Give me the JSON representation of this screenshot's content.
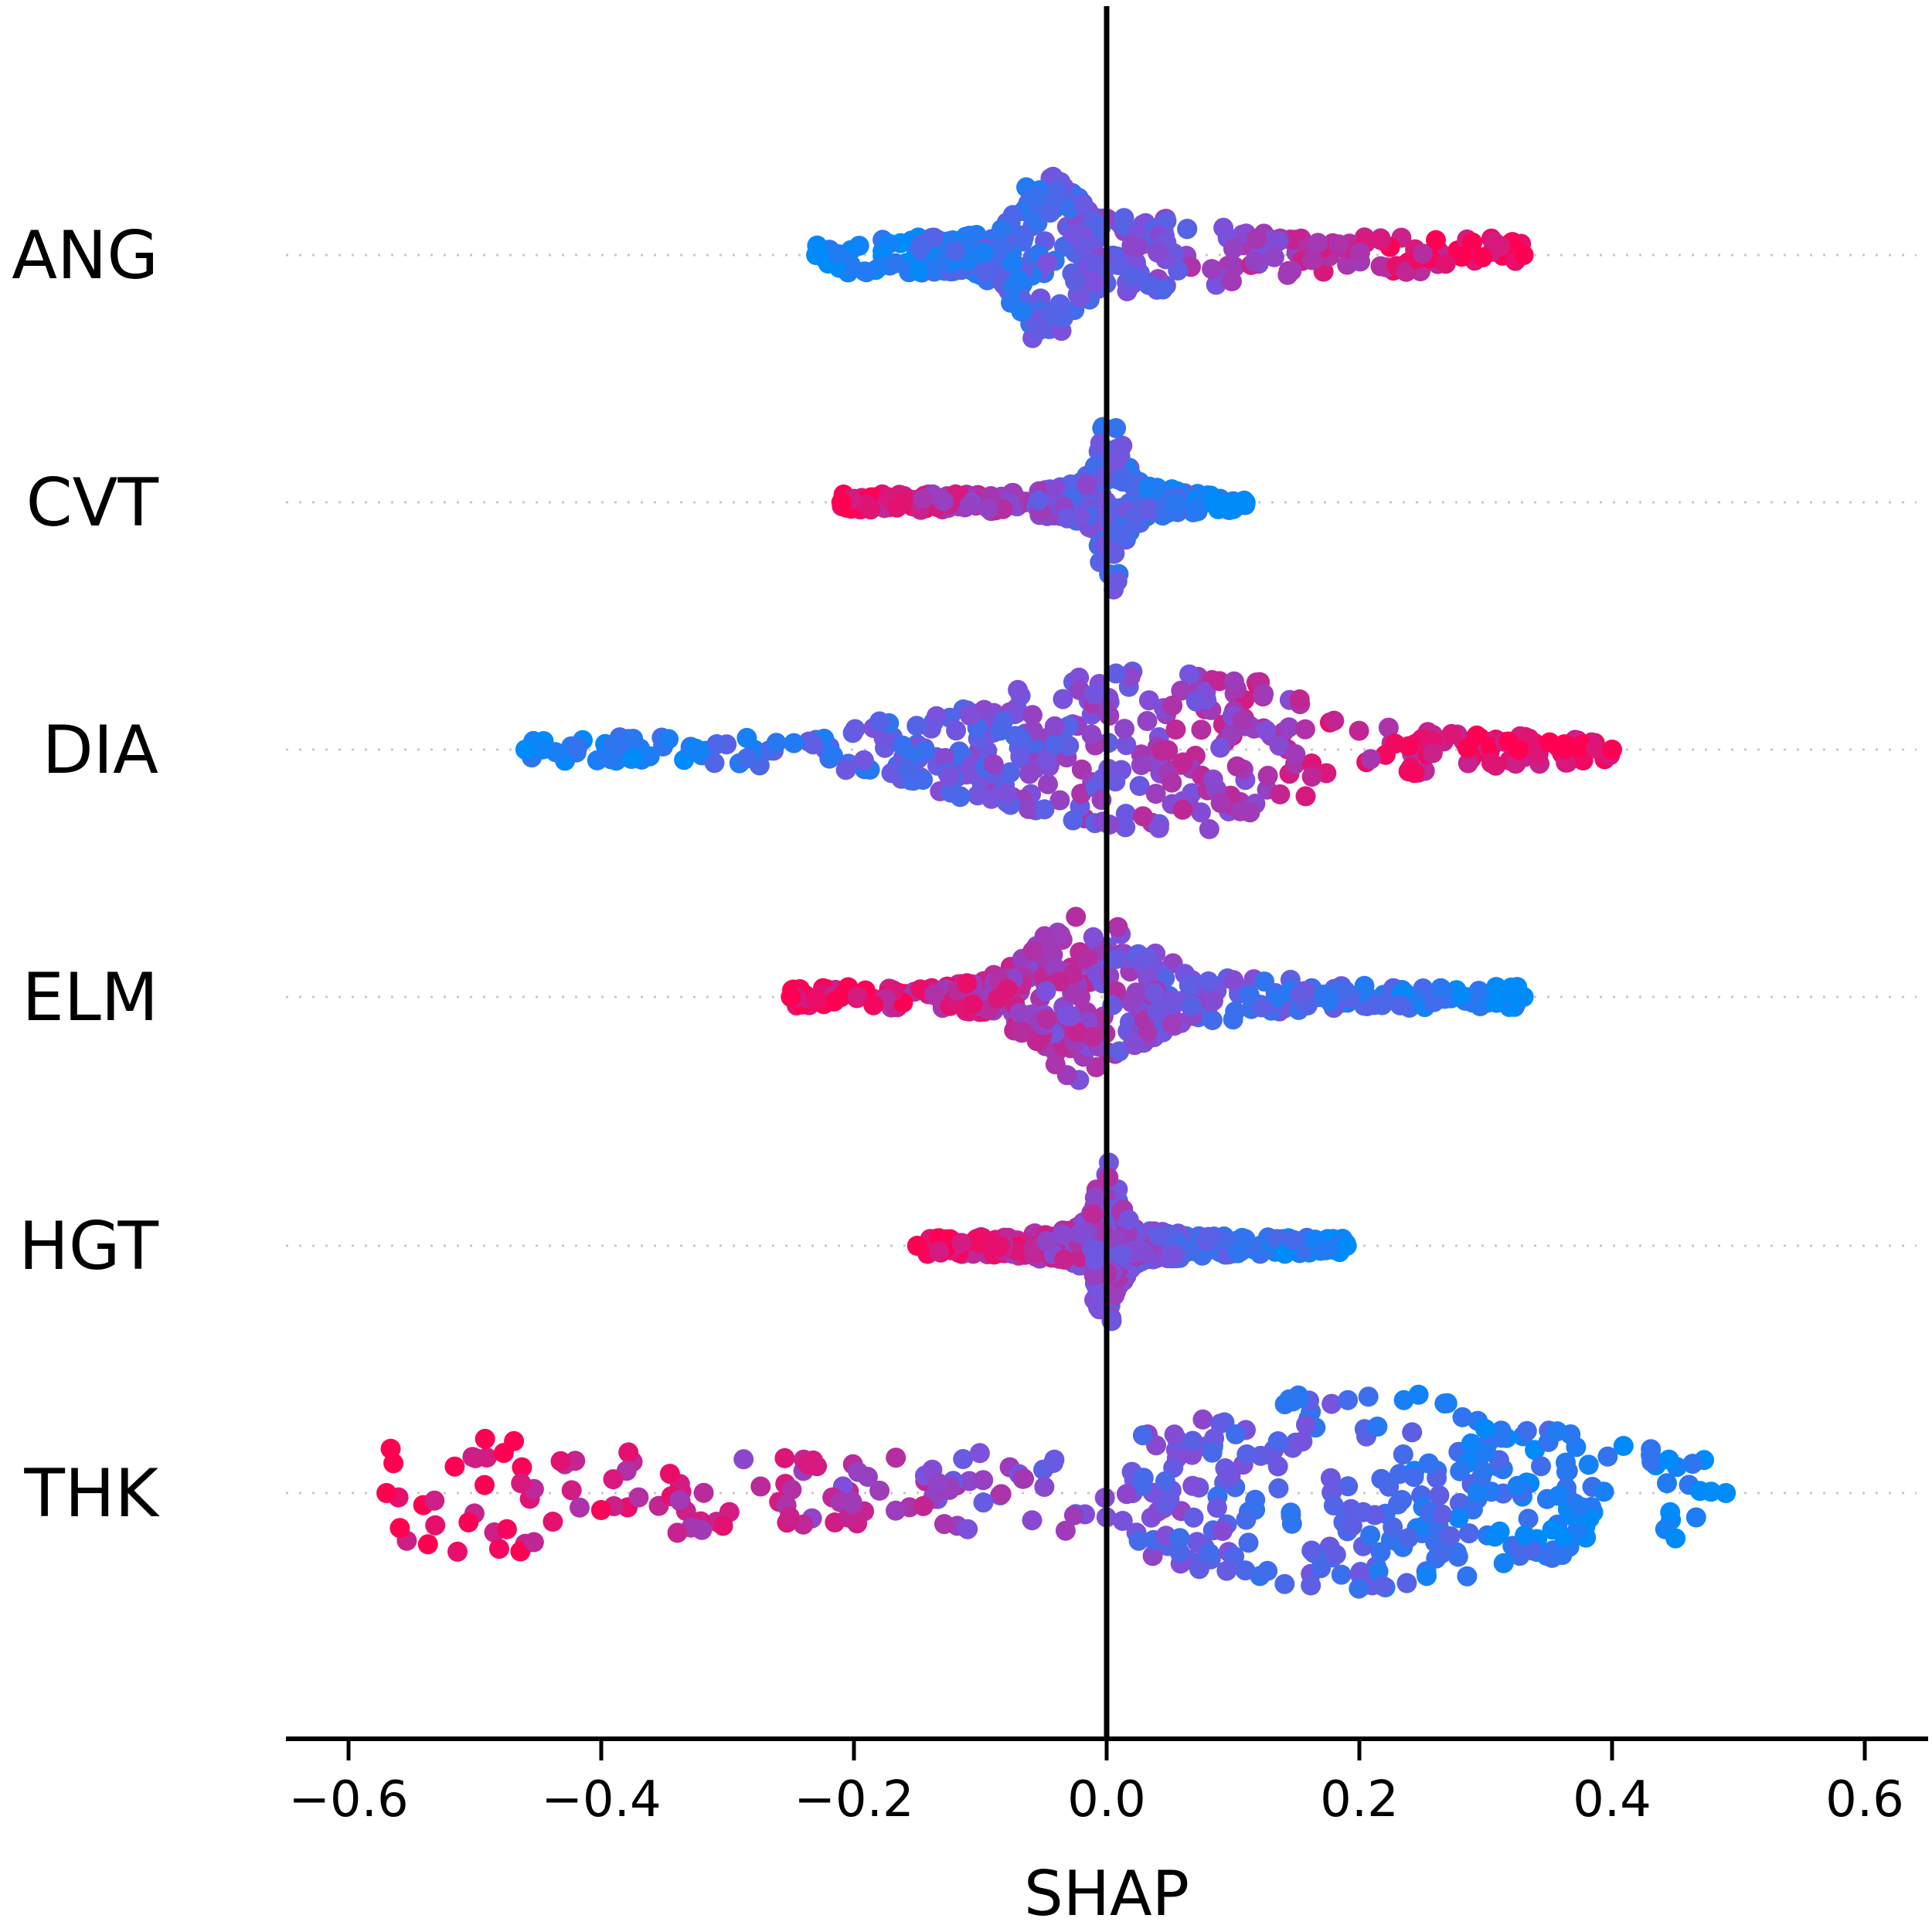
{
  "chart_data": {
    "type": "scatter",
    "subtype": "beeswarm",
    "title": "",
    "xlabel": "SHAP",
    "ylabel": "",
    "xlim": [
      -0.65,
      0.65
    ],
    "x_ticks": [
      -0.6,
      -0.4,
      -0.2,
      0.0,
      0.2,
      0.4,
      0.6
    ],
    "x_tick_labels": [
      "−0.6",
      "−0.4",
      "−0.2",
      "0.0",
      "0.2",
      "0.4",
      "0.6"
    ],
    "zero_line": 0.0,
    "grid": false,
    "row_guides": "dotted",
    "color_scale": {
      "low": "#008bfb",
      "high": "#ff0052",
      "meaning": "feature value low to high"
    },
    "features": [
      {
        "name": "ANG",
        "shap_min": -0.23,
        "shap_max": 0.33,
        "density_peak": -0.05,
        "high_value_direction": "positive"
      },
      {
        "name": "CVT",
        "shap_min": -0.21,
        "shap_max": 0.11,
        "density_peak": 0.0,
        "high_value_direction": "negative"
      },
      {
        "name": "DIA",
        "shap_min": -0.46,
        "shap_max": 0.4,
        "density_peak": 0.0,
        "high_value_direction": "positive"
      },
      {
        "name": "ELM",
        "shap_min": -0.25,
        "shap_max": 0.33,
        "density_peak": -0.03,
        "high_value_direction": "negative"
      },
      {
        "name": "HGT",
        "shap_min": -0.15,
        "shap_max": 0.19,
        "density_peak": 0.0,
        "high_value_direction": "negative"
      },
      {
        "name": "THK",
        "shap_min": -0.57,
        "shap_max": 0.49,
        "density_peak": 0.2,
        "high_value_direction": "negative"
      }
    ]
  }
}
